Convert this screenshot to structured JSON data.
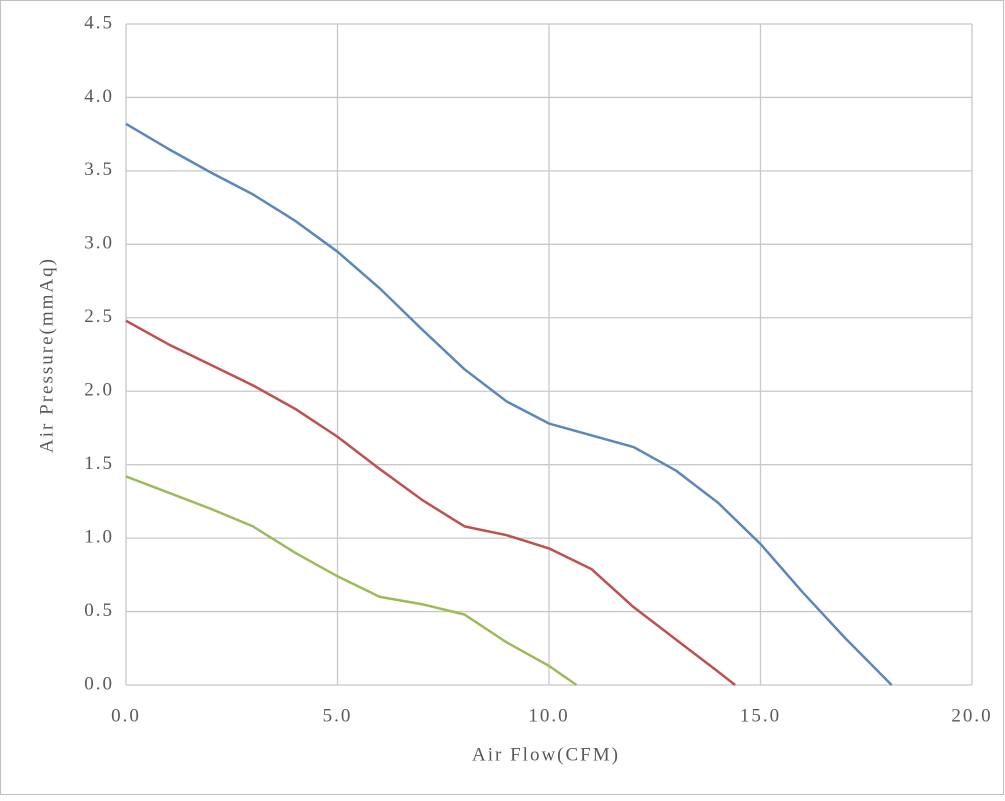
{
  "chart_data": {
    "type": "line",
    "x_label": "Air Flow(CFM)",
    "y_label": "Air Pressure(mmAq)",
    "xlim": [
      0,
      20
    ],
    "ylim": [
      0,
      4.5
    ],
    "xticks": [
      {
        "value": 0,
        "label": "0.0"
      },
      {
        "value": 5,
        "label": "5.0"
      },
      {
        "value": 10,
        "label": "10.0"
      },
      {
        "value": 15,
        "label": "15.0"
      },
      {
        "value": 20,
        "label": "20.0"
      }
    ],
    "yticks": [
      {
        "value": 0,
        "label": "0.0"
      },
      {
        "value": 0.5,
        "label": "0.5"
      },
      {
        "value": 1,
        "label": "1.0"
      },
      {
        "value": 1.5,
        "label": "1.5"
      },
      {
        "value": 2,
        "label": "2.0"
      },
      {
        "value": 2.5,
        "label": "2.5"
      },
      {
        "value": 3,
        "label": "3.0"
      },
      {
        "value": 3.5,
        "label": "3.5"
      },
      {
        "value": 4,
        "label": "4.0"
      },
      {
        "value": 4.5,
        "label": "4.5"
      }
    ],
    "grid": true,
    "series": [
      {
        "color": "#5b87bd",
        "x": [
          0,
          1,
          2,
          3,
          4,
          5,
          6,
          7,
          8,
          9,
          10,
          11,
          12,
          13,
          14,
          15,
          16,
          17,
          18.1
        ],
        "values": [
          3.82,
          3.65,
          3.49,
          3.34,
          3.16,
          2.95,
          2.7,
          2.42,
          2.15,
          1.93,
          1.78,
          1.7,
          1.62,
          1.46,
          1.24,
          0.96,
          0.63,
          0.32,
          0
        ]
      },
      {
        "color": "#c0504d",
        "x": [
          0,
          1,
          2,
          3,
          4,
          5,
          6,
          7,
          8,
          9,
          10,
          11,
          12,
          13,
          14,
          14.4
        ],
        "values": [
          2.48,
          2.32,
          2.18,
          2.04,
          1.88,
          1.69,
          1.47,
          1.26,
          1.08,
          1.02,
          0.93,
          0.79,
          0.53,
          0.31,
          0.09,
          0
        ]
      },
      {
        "color": "#9bbb59",
        "x": [
          0,
          1,
          2,
          3,
          4,
          5,
          6,
          7,
          8,
          9,
          10,
          10.65
        ],
        "values": [
          1.42,
          1.31,
          1.2,
          1.08,
          0.9,
          0.74,
          0.6,
          0.55,
          0.48,
          0.29,
          0.13,
          0
        ]
      }
    ]
  }
}
